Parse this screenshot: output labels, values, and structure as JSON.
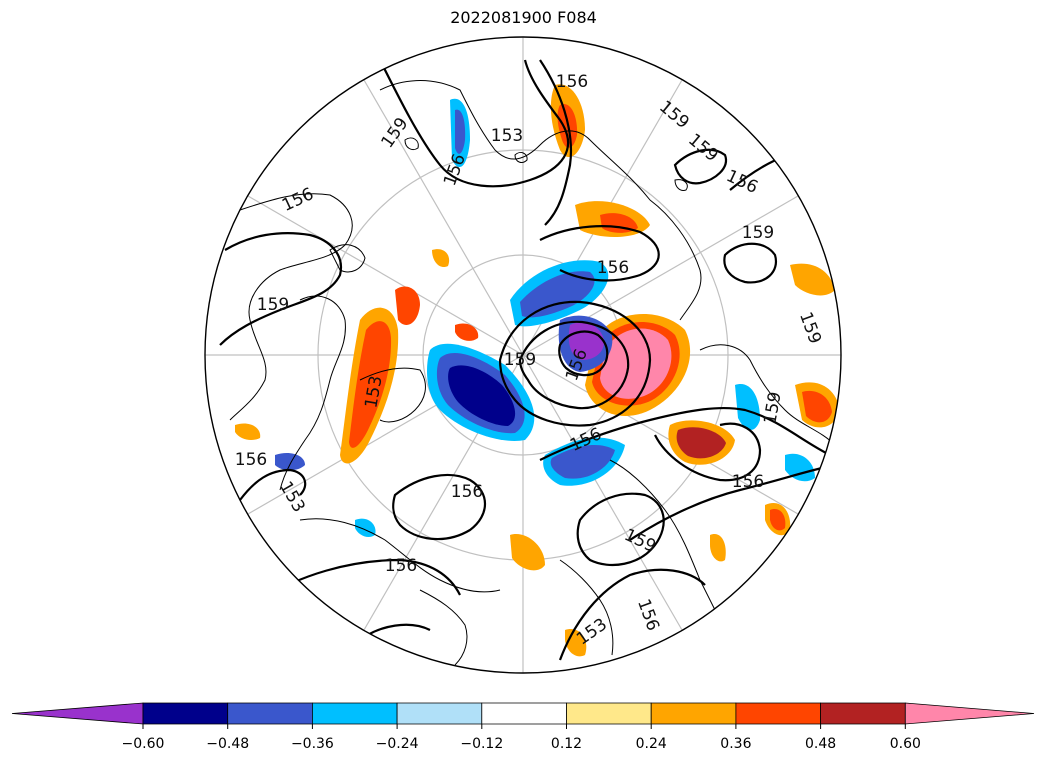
{
  "title": "2022081900 F084",
  "contour_labels": [
    "156",
    "153",
    "156",
    "159",
    "159",
    "159",
    "156",
    "156",
    "159",
    "159",
    "156",
    "159",
    "159",
    "156",
    "156",
    "156",
    "153",
    "156",
    "156",
    "159",
    "156",
    "153",
    "156",
    "153",
    "159"
  ],
  "colorbar": {
    "ticks": [
      "−0.60",
      "−0.48",
      "−0.36",
      "−0.24",
      "−0.12",
      "0.12",
      "0.24",
      "0.36",
      "0.48",
      "0.60"
    ],
    "colors": [
      "#9932cc",
      "#00008b",
      "#3a57cc",
      "#00bfff",
      "#b0e0f8",
      "#ffffff",
      "#ffe88a",
      "#ffa500",
      "#ff4500",
      "#b22222",
      "#ff86aa"
    ]
  }
}
